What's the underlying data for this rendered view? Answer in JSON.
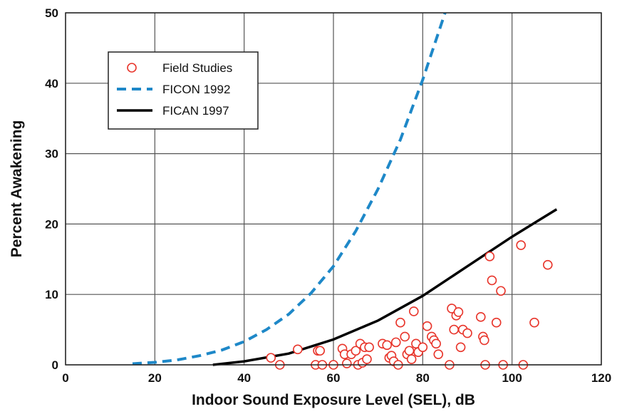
{
  "chart_data": {
    "type": "scatter",
    "xlabel": "Indoor Sound Exposure Level (SEL), dB",
    "ylabel": "Percent Awakening",
    "xlim": [
      0,
      120
    ],
    "ylim": [
      0,
      50
    ],
    "x_ticks": [
      "0",
      "20",
      "40",
      "60",
      "80",
      "100",
      "120"
    ],
    "y_ticks": [
      "0",
      "10",
      "20",
      "30",
      "40",
      "50"
    ],
    "grid": true,
    "legend_position": "top-left",
    "series": [
      {
        "name": "Field Studies",
        "kind": "scatter",
        "marker": "open-circle",
        "color": "#e8352b",
        "points": [
          [
            46,
            1.0
          ],
          [
            48,
            0.0
          ],
          [
            52,
            2.2
          ],
          [
            56,
            0.0
          ],
          [
            56.5,
            2.0
          ],
          [
            57,
            2.0
          ],
          [
            57.5,
            0.0
          ],
          [
            60,
            0.0
          ],
          [
            62,
            2.3
          ],
          [
            62.5,
            1.5
          ],
          [
            63,
            0.2
          ],
          [
            64,
            1.5
          ],
          [
            65,
            2.0
          ],
          [
            65.5,
            0.0
          ],
          [
            66,
            3.0
          ],
          [
            66.5,
            0.3
          ],
          [
            67,
            2.5
          ],
          [
            67.5,
            0.8
          ],
          [
            68,
            2.5
          ],
          [
            71,
            3.0
          ],
          [
            72,
            2.8
          ],
          [
            72.5,
            1.0
          ],
          [
            73,
            1.3
          ],
          [
            73.5,
            0.5
          ],
          [
            74,
            3.2
          ],
          [
            74.5,
            0.0
          ],
          [
            75,
            6.0
          ],
          [
            76,
            4.0
          ],
          [
            76.5,
            1.5
          ],
          [
            77,
            2.0
          ],
          [
            77.5,
            0.8
          ],
          [
            78,
            7.6
          ],
          [
            78.5,
            3.0
          ],
          [
            79,
            1.8
          ],
          [
            80,
            2.5
          ],
          [
            81,
            5.5
          ],
          [
            82,
            4.0
          ],
          [
            82.5,
            3.5
          ],
          [
            83,
            3.0
          ],
          [
            83.5,
            1.5
          ],
          [
            86,
            0.0
          ],
          [
            86.5,
            8.0
          ],
          [
            87,
            5.0
          ],
          [
            87.5,
            7.0
          ],
          [
            88,
            7.5
          ],
          [
            88.5,
            2.5
          ],
          [
            89,
            5.0
          ],
          [
            90,
            4.5
          ],
          [
            93,
            6.8
          ],
          [
            93.5,
            4.0
          ],
          [
            93.8,
            3.5
          ],
          [
            94,
            0.0
          ],
          [
            95,
            15.4
          ],
          [
            95.5,
            12.0
          ],
          [
            96.5,
            6.0
          ],
          [
            97.5,
            10.5
          ],
          [
            98,
            0.0
          ],
          [
            102,
            17.0
          ],
          [
            102.5,
            0.0
          ],
          [
            105,
            6.0
          ],
          [
            108,
            14.2
          ]
        ]
      },
      {
        "name": "FICON 1992",
        "kind": "line",
        "style": "dashed",
        "color": "#1e88c8",
        "points": [
          [
            15,
            0.15
          ],
          [
            20,
            0.35
          ],
          [
            25,
            0.7
          ],
          [
            30,
            1.3
          ],
          [
            35,
            2.1
          ],
          [
            40,
            3.3
          ],
          [
            45,
            5.0
          ],
          [
            50,
            7.2
          ],
          [
            55,
            10.2
          ],
          [
            60,
            14.0
          ],
          [
            65,
            19.0
          ],
          [
            70,
            25.0
          ],
          [
            75,
            32.0
          ],
          [
            80,
            40.5
          ],
          [
            85,
            50.0
          ]
        ]
      },
      {
        "name": "FICAN 1997",
        "kind": "line",
        "style": "solid",
        "color": "#000000",
        "points": [
          [
            33,
            0.0
          ],
          [
            40,
            0.5
          ],
          [
            50,
            1.6
          ],
          [
            60,
            3.6
          ],
          [
            70,
            6.3
          ],
          [
            80,
            9.8
          ],
          [
            90,
            14.0
          ],
          [
            100,
            18.2
          ],
          [
            110,
            22.1
          ]
        ]
      }
    ]
  }
}
